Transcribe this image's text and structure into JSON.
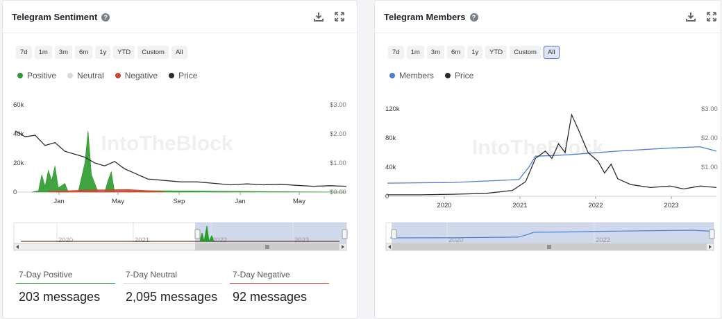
{
  "panels": {
    "left": {
      "title": "Telegram Sentiment",
      "ranges": [
        "7d",
        "1m",
        "3m",
        "6m",
        "1y",
        "YTD",
        "Custom",
        "All"
      ],
      "active_range": "",
      "legend": [
        {
          "label": "Positive",
          "color": "#2a9a2a"
        },
        {
          "label": "Neutral",
          "color": "#d8d8d8"
        },
        {
          "label": "Negative",
          "color": "#d0442c"
        },
        {
          "label": "Price",
          "color": "#2b2b2b"
        }
      ],
      "stats": [
        {
          "label": "7-Day Positive",
          "value": "203 messages",
          "color": "#2a9a2a"
        },
        {
          "label": "7-Day Neutral",
          "value": "2,095 messages",
          "color": "#dcdcdc"
        },
        {
          "label": "7-Day Negative",
          "value": "92 messages",
          "color": "#d0442c"
        }
      ]
    },
    "right": {
      "title": "Telegram Members",
      "ranges": [
        "7d",
        "1m",
        "3m",
        "6m",
        "1y",
        "YTD",
        "Custom",
        "All"
      ],
      "active_range": "All",
      "legend": [
        {
          "label": "Members",
          "color": "#4a7fd4"
        },
        {
          "label": "Price",
          "color": "#2b2b2b"
        }
      ]
    }
  },
  "watermark": "IntoTheBlock",
  "chart_data": [
    {
      "type": "area",
      "title": "Telegram Sentiment",
      "x_ticks": [
        "Jan",
        "May",
        "Sep",
        "Jan",
        "May"
      ],
      "y_ticks_left": [
        "60k",
        "40k",
        "20k",
        "0"
      ],
      "y_ticks_right": [
        "$3.00",
        "$2.00",
        "$1.00",
        "$0.00"
      ],
      "ylim_left": [
        0,
        60000
      ],
      "ylim_right": [
        0,
        3
      ],
      "navigator_ticks": [
        "2020",
        "2021",
        "2022",
        "2023"
      ],
      "series": [
        {
          "name": "Positive",
          "color": "#2a9a2a",
          "points": [
            [
              0.05,
              0
            ],
            [
              0.07,
              1000
            ],
            [
              0.08,
              12000
            ],
            [
              0.09,
              4000
            ],
            [
              0.1,
              15000
            ],
            [
              0.11,
              8000
            ],
            [
              0.12,
              18000
            ],
            [
              0.13,
              3000
            ],
            [
              0.15,
              6000
            ],
            [
              0.16,
              0
            ],
            [
              0.19,
              0
            ],
            [
              0.2,
              10000
            ],
            [
              0.21,
              20000
            ],
            [
              0.22,
              42000
            ],
            [
              0.23,
              12000
            ],
            [
              0.24,
              6000
            ],
            [
              0.25,
              0
            ],
            [
              0.27,
              0
            ],
            [
              0.28,
              8000
            ],
            [
              0.29,
              14000
            ],
            [
              0.3,
              0
            ],
            [
              0.4,
              1000
            ],
            [
              1.0,
              0
            ]
          ]
        },
        {
          "name": "Negative",
          "color": "#d0442c",
          "points": [
            [
              0.1,
              500
            ],
            [
              0.22,
              1500
            ],
            [
              0.34,
              1800
            ],
            [
              0.45,
              400
            ]
          ]
        },
        {
          "name": "Price",
          "color": "#2b2b2b",
          "points": [
            [
              0,
              2.1
            ],
            [
              0.03,
              1.9
            ],
            [
              0.06,
              1.95
            ],
            [
              0.09,
              1.6
            ],
            [
              0.12,
              1.7
            ],
            [
              0.15,
              1.4
            ],
            [
              0.18,
              1.3
            ],
            [
              0.21,
              1.2
            ],
            [
              0.24,
              1.0
            ],
            [
              0.27,
              0.9
            ],
            [
              0.3,
              1.05
            ],
            [
              0.33,
              0.8
            ],
            [
              0.36,
              0.65
            ],
            [
              0.4,
              0.45
            ],
            [
              0.45,
              0.4
            ],
            [
              0.5,
              0.35
            ],
            [
              0.55,
              0.35
            ],
            [
              0.6,
              0.3
            ],
            [
              0.65,
              0.25
            ],
            [
              0.7,
              0.28
            ],
            [
              0.75,
              0.25
            ],
            [
              0.8,
              0.27
            ],
            [
              0.85,
              0.23
            ],
            [
              0.9,
              0.2
            ],
            [
              0.95,
              0.22
            ],
            [
              1.0,
              0.2
            ]
          ]
        }
      ]
    },
    {
      "type": "line",
      "title": "Telegram Members",
      "x_ticks": [
        "2020",
        "2021",
        "2022",
        "2023"
      ],
      "y_ticks_left": [
        "120k",
        "80k",
        "40k",
        "0"
      ],
      "y_ticks_right": [
        "$3.00",
        "$2.00",
        "$1.00"
      ],
      "ylim_left": [
        0,
        120000
      ],
      "ylim_right": [
        0,
        3
      ],
      "navigator_ticks": [
        "2020",
        "2022"
      ],
      "series": [
        {
          "name": "Members",
          "color": "#4a7fd4",
          "points": [
            [
              0,
              18000
            ],
            [
              0.2,
              19000
            ],
            [
              0.4,
              23000
            ],
            [
              0.43,
              40000
            ],
            [
              0.45,
              55000
            ],
            [
              0.55,
              57000
            ],
            [
              0.7,
              62000
            ],
            [
              0.85,
              66000
            ],
            [
              0.95,
              68000
            ],
            [
              1.0,
              62000
            ]
          ]
        },
        {
          "name": "Price",
          "color": "#2b2b2b",
          "points": [
            [
              0,
              0.05
            ],
            [
              0.1,
              0.05
            ],
            [
              0.2,
              0.07
            ],
            [
              0.3,
              0.1
            ],
            [
              0.38,
              0.2
            ],
            [
              0.42,
              0.5
            ],
            [
              0.45,
              1.3
            ],
            [
              0.48,
              1.55
            ],
            [
              0.5,
              1.3
            ],
            [
              0.52,
              1.8
            ],
            [
              0.54,
              1.5
            ],
            [
              0.56,
              2.8
            ],
            [
              0.58,
              2.3
            ],
            [
              0.61,
              1.5
            ],
            [
              0.64,
              1.2
            ],
            [
              0.66,
              0.8
            ],
            [
              0.68,
              1.1
            ],
            [
              0.7,
              0.6
            ],
            [
              0.74,
              0.4
            ],
            [
              0.8,
              0.3
            ],
            [
              0.86,
              0.35
            ],
            [
              0.9,
              0.25
            ],
            [
              0.95,
              0.35
            ],
            [
              1.0,
              0.3
            ]
          ]
        }
      ]
    }
  ]
}
